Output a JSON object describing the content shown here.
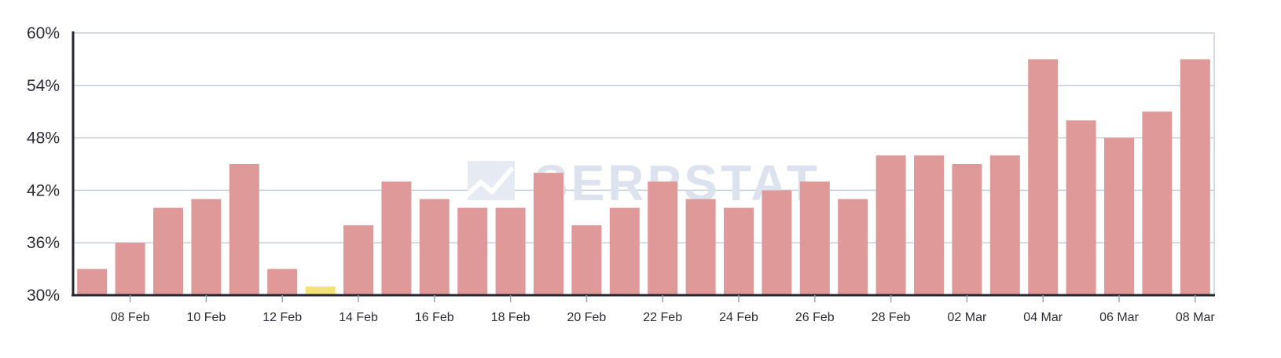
{
  "chart_data": {
    "type": "bar",
    "categories": [
      "07 Feb",
      "08 Feb",
      "09 Feb",
      "10 Feb",
      "11 Feb",
      "12 Feb",
      "13 Feb",
      "14 Feb",
      "15 Feb",
      "16 Feb",
      "17 Feb",
      "18 Feb",
      "19 Feb",
      "20 Feb",
      "21 Feb",
      "22 Feb",
      "23 Feb",
      "24 Feb",
      "25 Feb",
      "26 Feb",
      "27 Feb",
      "28 Feb",
      "01 Mar",
      "02 Mar",
      "03 Mar",
      "04 Mar",
      "05 Mar",
      "06 Mar",
      "07 Mar",
      "08 Mar"
    ],
    "values": [
      33,
      36,
      40,
      41,
      45,
      33,
      31,
      38,
      43,
      41,
      40,
      40,
      44,
      38,
      40,
      43,
      41,
      40,
      42,
      43,
      41,
      46,
      46,
      45,
      46,
      57,
      50,
      48,
      51,
      57
    ],
    "highlight_index": 6,
    "ylim": [
      30,
      60
    ],
    "yticks": [
      30,
      36,
      42,
      48,
      54,
      60
    ],
    "ytick_labels": [
      "30%",
      "36%",
      "42%",
      "48%",
      "54%",
      "60%"
    ],
    "xtick_labels": [
      "08 Feb",
      "10 Feb",
      "12 Feb",
      "14 Feb",
      "16 Feb",
      "18 Feb",
      "20 Feb",
      "22 Feb",
      "24 Feb",
      "26 Feb",
      "28 Feb",
      "02 Mar",
      "04 Mar",
      "06 Mar",
      "08 Mar"
    ],
    "grid": true,
    "colors": {
      "bar": "#e09999",
      "highlight": "#f3e27a",
      "grid": "#c5cedd",
      "axis": "#26262e"
    }
  },
  "watermark": {
    "text": "SERPSTAT",
    "icon": "serpstat-logo-icon"
  }
}
